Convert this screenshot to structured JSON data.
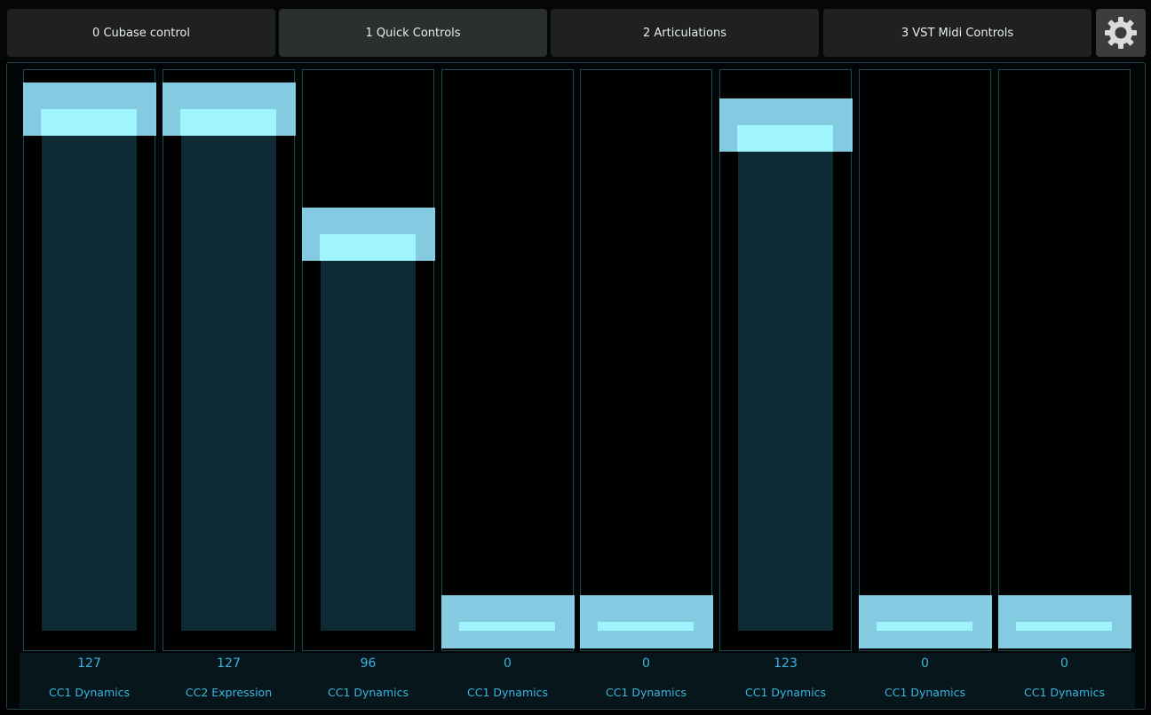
{
  "tabs": [
    {
      "label": "0 Cubase control",
      "active": false
    },
    {
      "label": "1 Quick Controls",
      "active": true
    },
    {
      "label": "2 Articulations",
      "active": false
    },
    {
      "label": "3 VST Midi Controls",
      "active": false
    }
  ],
  "settings_icon": "gear-icon",
  "colors": {
    "accent": "#3bb5e0",
    "knob": "#96e6ff",
    "fill": "#0e2a34",
    "border": "#1d4a57"
  },
  "faders": [
    {
      "value": "127",
      "label": "CC1 Dynamics",
      "level": 127
    },
    {
      "value": "127",
      "label": "CC2 Expression",
      "level": 127
    },
    {
      "value": "96",
      "label": "CC1 Dynamics",
      "level": 96
    },
    {
      "value": "0",
      "label": "CC1 Dynamics",
      "level": 0
    },
    {
      "value": "0",
      "label": "CC1 Dynamics",
      "level": 0
    },
    {
      "value": "123",
      "label": "CC1 Dynamics",
      "level": 123
    },
    {
      "value": "0",
      "label": "CC1 Dynamics",
      "level": 0
    },
    {
      "value": "0",
      "label": "CC1 Dynamics",
      "level": 0
    }
  ],
  "max_level": 127
}
